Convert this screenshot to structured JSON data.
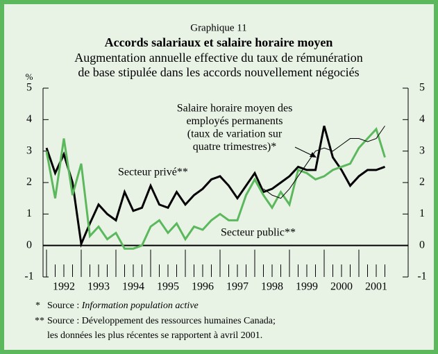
{
  "chart_data": {
    "type": "line",
    "title": "Graphique 11",
    "subtitle": "Accords salariaux et salaire horaire moyen",
    "description": [
      "Augmentation annuelle effective du taux de rémunération",
      "de base stipulée dans les accords nouvellement négociés"
    ],
    "y_unit": "%",
    "x": [
      1992.0,
      1992.25,
      1992.5,
      1992.75,
      1993.0,
      1993.25,
      1993.5,
      1993.75,
      1994.0,
      1994.25,
      1994.5,
      1994.75,
      1995.0,
      1995.25,
      1995.5,
      1995.75,
      1996.0,
      1996.25,
      1996.5,
      1996.75,
      1997.0,
      1997.25,
      1997.5,
      1997.75,
      1998.0,
      1998.25,
      1998.5,
      1998.75,
      1999.0,
      1999.25,
      1999.5,
      1999.75,
      2000.0,
      2000.25,
      2000.5,
      2000.75,
      2001.0,
      2001.25,
      2001.5,
      2001.75
    ],
    "series": [
      {
        "name": "Secteur privé**",
        "color": "#000000",
        "width": 3,
        "values": [
          3.1,
          2.3,
          2.9,
          2.0,
          0.05,
          0.7,
          1.3,
          1.0,
          0.8,
          1.7,
          1.1,
          1.2,
          1.9,
          1.3,
          1.2,
          1.7,
          1.3,
          1.6,
          1.8,
          2.1,
          2.2,
          1.9,
          1.5,
          1.9,
          2.3,
          1.7,
          1.8,
          2.0,
          2.2,
          2.5,
          2.4,
          2.4,
          3.8,
          2.8,
          2.4,
          1.9,
          2.2,
          2.4,
          2.4,
          2.5
        ]
      },
      {
        "name": "Secteur public**",
        "color": "#5cb85c",
        "width": 3,
        "values": [
          3.0,
          1.5,
          3.4,
          1.6,
          2.6,
          0.3,
          0.6,
          0.2,
          0.4,
          -0.1,
          -0.1,
          0.0,
          0.6,
          0.8,
          0.4,
          0.7,
          0.2,
          0.6,
          0.5,
          0.8,
          1.0,
          0.8,
          0.8,
          1.6,
          2.1,
          1.6,
          1.2,
          1.7,
          1.3,
          2.4,
          2.3,
          2.1,
          2.2,
          2.4,
          2.5,
          2.6,
          3.1,
          3.4,
          3.7,
          2.8
        ]
      },
      {
        "color": "#000000",
        "width": 1,
        "values": [
          null,
          null,
          null,
          null,
          null,
          null,
          null,
          null,
          null,
          null,
          null,
          null,
          null,
          null,
          null,
          null,
          null,
          null,
          null,
          null,
          null,
          null,
          null,
          null,
          null,
          1.8,
          1.6,
          1.5,
          1.8,
          2.2,
          2.6,
          3.0,
          3.1,
          3.0,
          3.2,
          3.4,
          3.4,
          3.3,
          3.4,
          3.8
        ]
      }
    ],
    "annotation": [
      "Salaire horaire moyen des",
      "employés permanents",
      "(taux de variation sur",
      "quatre trimestres)*"
    ],
    "xlim": [
      1991.9,
      2002.42
    ],
    "xticks": [
      {
        "value": 1992.5,
        "label": "1992"
      },
      {
        "value": 1993.5,
        "label": "1993"
      },
      {
        "value": 1994.5,
        "label": "1994"
      },
      {
        "value": 1995.5,
        "label": "1995"
      },
      {
        "value": 1996.5,
        "label": "1996"
      },
      {
        "value": 1997.5,
        "label": "1997"
      },
      {
        "value": 1998.5,
        "label": "1998"
      },
      {
        "value": 1999.5,
        "label": "1999"
      },
      {
        "value": 2000.5,
        "label": "2000"
      },
      {
        "value": 2001.5,
        "label": "2001"
      }
    ],
    "ylim": [
      -1,
      5
    ],
    "yticks": [
      -1,
      0,
      1,
      2,
      3,
      4,
      5
    ],
    "y2lim": [
      -1,
      5
    ],
    "y2ticks": [
      -1,
      0,
      1,
      2,
      3,
      4,
      5
    ],
    "footnotes": [
      {
        "marker": "*",
        "text": "Source : ",
        "source": "Information population active"
      },
      {
        "marker": "**",
        "lines": [
          "Source : Développement des ressources humaines Canada;",
          "les données les plus récentes se rapportent à avril 2001."
        ]
      }
    ]
  }
}
